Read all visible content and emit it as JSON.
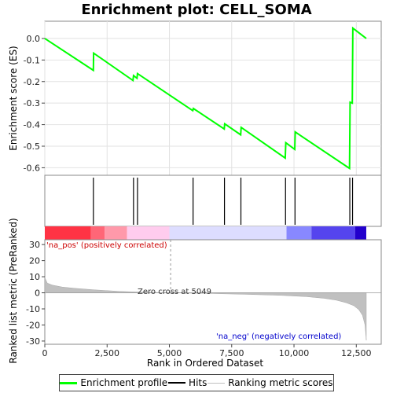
{
  "chart_data": {
    "type": "line",
    "title": "Enrichment plot: CELL_SOMA",
    "es_panel": {
      "ylabel": "Enrichment score (ES)",
      "ylim": [
        -0.635,
        0.08
      ],
      "yticks": [
        0.0,
        -0.1,
        -0.2,
        -0.3,
        -0.4,
        -0.5,
        -0.6
      ],
      "ytick_labels": [
        "0.0",
        "-0.1",
        "-0.2",
        "-0.3",
        "-0.4",
        "-0.5",
        "-0.6"
      ],
      "series": [
        {
          "name": "Enrichment profile",
          "color": "#00ff00",
          "points": [
            [
              0,
              0.0
            ],
            [
              1950,
              -0.148
            ],
            [
              1960,
              -0.068
            ],
            [
              3540,
              -0.195
            ],
            [
              3560,
              -0.172
            ],
            [
              3700,
              -0.185
            ],
            [
              3720,
              -0.163
            ],
            [
              5940,
              -0.335
            ],
            [
              5960,
              -0.325
            ],
            [
              7200,
              -0.42
            ],
            [
              7220,
              -0.396
            ],
            [
              7860,
              -0.447
            ],
            [
              7880,
              -0.413
            ],
            [
              9650,
              -0.555
            ],
            [
              9670,
              -0.484
            ],
            [
              10030,
              -0.515
            ],
            [
              10050,
              -0.434
            ],
            [
              12230,
              -0.603
            ],
            [
              12250,
              -0.296
            ],
            [
              12340,
              -0.3
            ],
            [
              12360,
              0.048
            ],
            [
              12900,
              0.0
            ]
          ]
        }
      ]
    },
    "hits": [
      1950,
      3560,
      3720,
      5950,
      7210,
      7870,
      9660,
      10040,
      12240,
      12350
    ],
    "color_bar": {
      "segments": [
        {
          "start": 0,
          "end": 1850,
          "color": "#ff3344"
        },
        {
          "start": 1850,
          "end": 2400,
          "color": "#ff6677"
        },
        {
          "start": 2400,
          "end": 3300,
          "color": "#ff99aa"
        },
        {
          "start": 3300,
          "end": 5000,
          "color": "#ffccee"
        },
        {
          "start": 5000,
          "end": 9700,
          "color": "#ddddff"
        },
        {
          "start": 9700,
          "end": 10700,
          "color": "#8888ff"
        },
        {
          "start": 10700,
          "end": 12450,
          "color": "#5544ee"
        },
        {
          "start": 12450,
          "end": 12900,
          "color": "#2200cc"
        }
      ]
    },
    "metric_panel": {
      "ylabel": "Ranked list metric (PreRanked)",
      "ylim": [
        -32,
        33
      ],
      "yticks": [
        30,
        20,
        10,
        0,
        -10,
        -20,
        -30
      ],
      "ytick_labels": [
        "30",
        "20",
        "10",
        "0",
        "-10",
        "-20",
        "-30"
      ],
      "profile": [
        [
          0,
          9.5
        ],
        [
          100,
          6.0
        ],
        [
          300,
          4.8
        ],
        [
          700,
          3.6
        ],
        [
          1200,
          2.8
        ],
        [
          2000,
          1.8
        ],
        [
          3000,
          0.9
        ],
        [
          4000,
          0.35
        ],
        [
          5049,
          0.0
        ],
        [
          6500,
          -0.4
        ],
        [
          8000,
          -0.9
        ],
        [
          9500,
          -1.6
        ],
        [
          10500,
          -2.4
        ],
        [
          11200,
          -3.4
        ],
        [
          11700,
          -4.6
        ],
        [
          12100,
          -6.2
        ],
        [
          12400,
          -8.0
        ],
        [
          12600,
          -10.5
        ],
        [
          12750,
          -14.0
        ],
        [
          12850,
          -20.0
        ],
        [
          12900,
          -29.5
        ]
      ],
      "zero_cross_label": "Zero cross at 5049",
      "zero_cross": 5049,
      "pos_label": "'na_pos' (positively correlated)",
      "neg_label": "'na_neg' (negatively correlated)"
    },
    "x_axis": {
      "xlabel": "Rank in Ordered Dataset",
      "xlim": [
        0,
        13500
      ],
      "xticks": [
        0,
        2500,
        5000,
        7500,
        10000,
        12500
      ],
      "xtick_labels": [
        "0",
        "2,500",
        "5,000",
        "7,500",
        "10,000",
        "12,500"
      ]
    },
    "legend": [
      {
        "label": "Enrichment profile",
        "color": "#00ff00"
      },
      {
        "label": "Hits",
        "color": "#000000"
      },
      {
        "label": "Ranking metric scores",
        "color": "#c0c0c0"
      }
    ]
  }
}
